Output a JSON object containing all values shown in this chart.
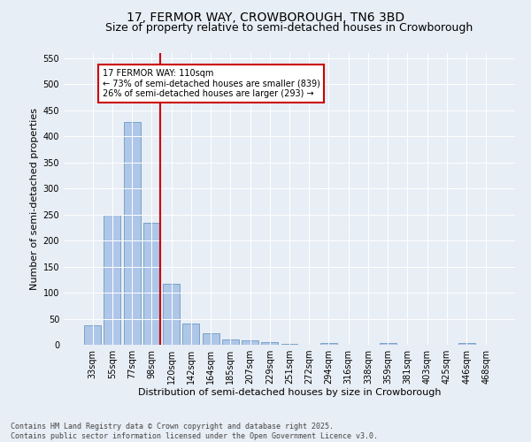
{
  "title": "17, FERMOR WAY, CROWBOROUGH, TN6 3BD",
  "subtitle": "Size of property relative to semi-detached houses in Crowborough",
  "xlabel": "Distribution of semi-detached houses by size in Crowborough",
  "ylabel": "Number of semi-detached properties",
  "categories": [
    "33sqm",
    "55sqm",
    "77sqm",
    "98sqm",
    "120sqm",
    "142sqm",
    "164sqm",
    "185sqm",
    "207sqm",
    "229sqm",
    "251sqm",
    "272sqm",
    "294sqm",
    "316sqm",
    "338sqm",
    "359sqm",
    "381sqm",
    "403sqm",
    "425sqm",
    "446sqm",
    "468sqm"
  ],
  "values": [
    38,
    250,
    428,
    234,
    117,
    40,
    22,
    10,
    8,
    5,
    2,
    0,
    4,
    0,
    0,
    3,
    0,
    0,
    0,
    3,
    0
  ],
  "bar_color": "#aec6e8",
  "bar_edge_color": "#5b8db8",
  "vline_color": "#cc0000",
  "ylim": [
    0,
    560
  ],
  "yticks": [
    0,
    50,
    100,
    150,
    200,
    250,
    300,
    350,
    400,
    450,
    500,
    550
  ],
  "annotation_title": "17 FERMOR WAY: 110sqm",
  "annotation_line1": "← 73% of semi-detached houses are smaller (839)",
  "annotation_line2": "26% of semi-detached houses are larger (293) →",
  "annotation_box_color": "#cc0000",
  "background_color": "#e8eef5",
  "footer_line1": "Contains HM Land Registry data © Crown copyright and database right 2025.",
  "footer_line2": "Contains public sector information licensed under the Open Government Licence v3.0.",
  "title_fontsize": 10,
  "subtitle_fontsize": 9,
  "xlabel_fontsize": 8,
  "ylabel_fontsize": 8,
  "tick_fontsize": 7,
  "footer_fontsize": 6
}
